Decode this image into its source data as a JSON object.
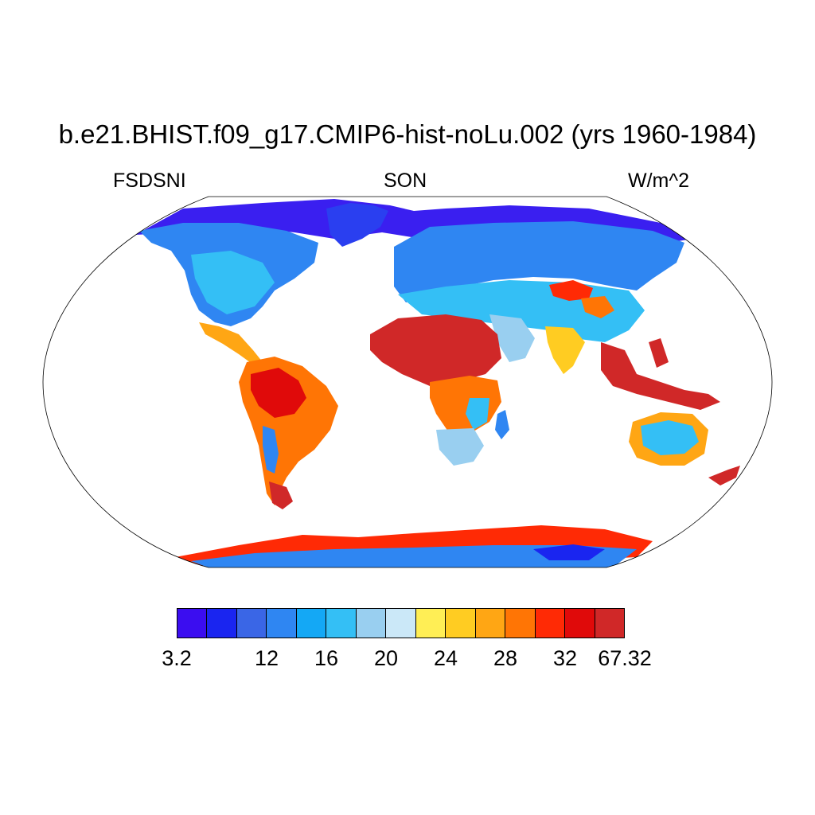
{
  "title": "b.e21.BHIST.f09_g17.CMIP6-hist-noLu.002 (yrs 1960-1984)",
  "subtitles": {
    "left": "FSDSNI",
    "center": "SON",
    "right": "W/m^2"
  },
  "map": {
    "projection": "Robinson",
    "background": "#ffffff",
    "coastline_color": "#000000"
  },
  "colorbar": {
    "colors": [
      "#3b0df0",
      "#1a25f0",
      "#3a66e6",
      "#2f86f2",
      "#14a8f5",
      "#34bff5",
      "#99cff0",
      "#cbe8f8",
      "#ffee55",
      "#ffcc22",
      "#ffa614",
      "#ff7505",
      "#ff2a05",
      "#e00a0a",
      "#d02828"
    ],
    "tick_labels": [
      "3.2",
      "12",
      "16",
      "20",
      "24",
      "28",
      "32",
      "67.32"
    ]
  }
}
